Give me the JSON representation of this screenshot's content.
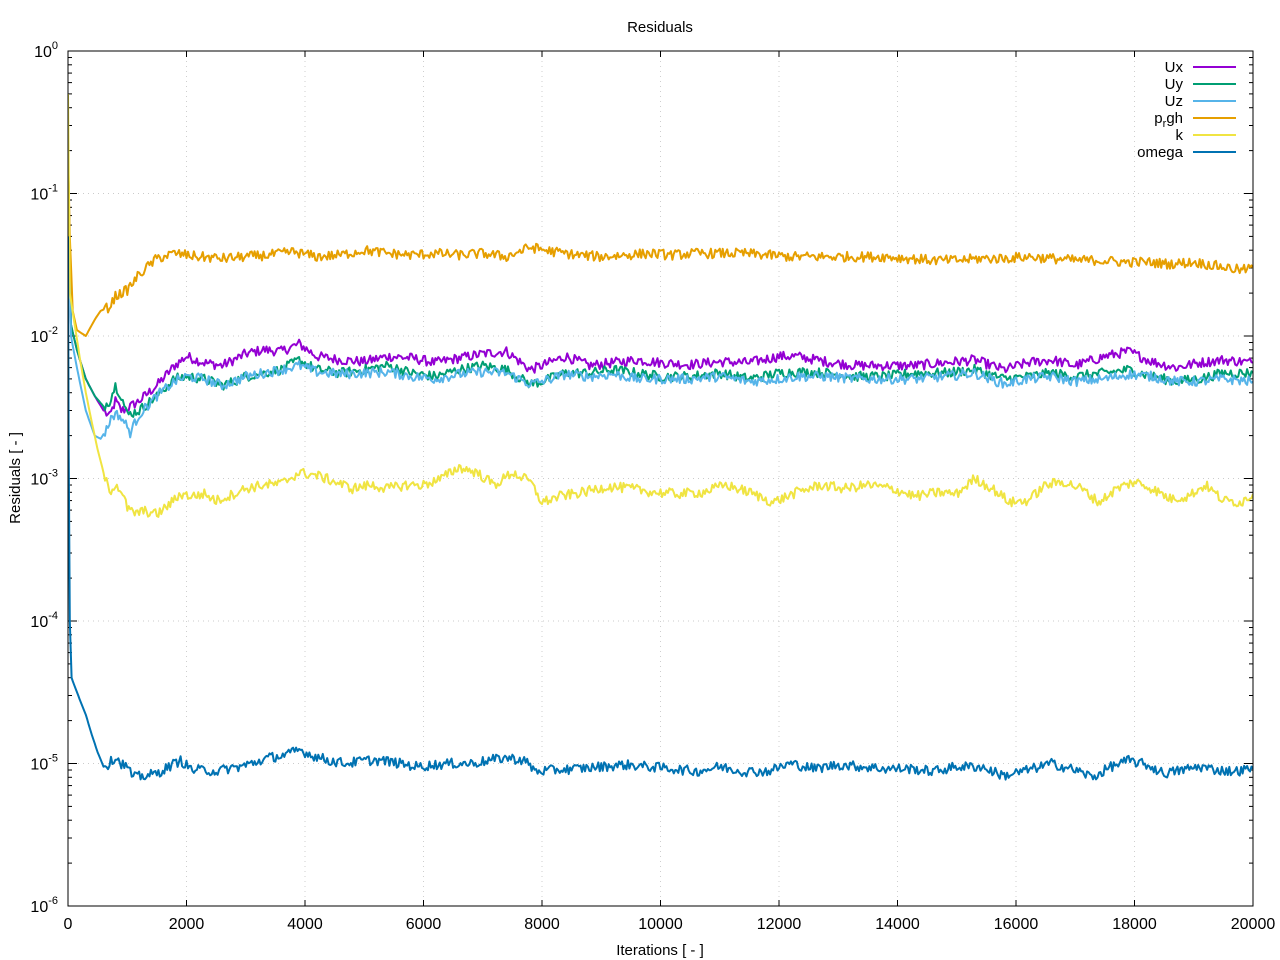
{
  "chart_data": {
    "type": "line",
    "title": "Residuals",
    "xlabel": "Iterations [ - ]",
    "ylabel": "Residuals [ - ]",
    "xlim": [
      0,
      20000
    ],
    "ylim": [
      1e-06,
      1
    ],
    "yscale": "log",
    "grid": true,
    "legend_position": "top-right",
    "x_ticks": [
      "0",
      "2000",
      "4000",
      "6000",
      "8000",
      "10000",
      "12000",
      "14000",
      "16000",
      "18000",
      "20000"
    ],
    "y_ticks": [
      {
        "base": "10",
        "exp": "0"
      },
      {
        "base": "10",
        "exp": "-1"
      },
      {
        "base": "10",
        "exp": "-2"
      },
      {
        "base": "10",
        "exp": "-3"
      },
      {
        "base": "10",
        "exp": "-4"
      },
      {
        "base": "10",
        "exp": "-5"
      },
      {
        "base": "10",
        "exp": "-6"
      }
    ],
    "series": [
      {
        "name": "Ux",
        "color": "#9400d3",
        "x": [
          0,
          50,
          150,
          300,
          450,
          600,
          700,
          800,
          900,
          1000,
          1200,
          1500,
          1800,
          2000,
          2300,
          2600,
          2800,
          3000,
          3300,
          3600,
          3900,
          4200,
          4600,
          5000,
          5400,
          5800,
          6200,
          6600,
          7000,
          7400,
          7800,
          8000,
          8400,
          8800,
          9200,
          9600,
          10000,
          10500,
          11000,
          11500,
          12000,
          12300,
          12800,
          13300,
          13800,
          14300,
          14800,
          15300,
          15800,
          16200,
          16600,
          17000,
          17500,
          17900,
          18300,
          18700,
          19100,
          19500,
          20000
        ],
        "y": [
          0.2,
          0.012,
          0.008,
          0.005,
          0.0038,
          0.003,
          0.0027,
          0.0035,
          0.003,
          0.0031,
          0.0035,
          0.0045,
          0.0062,
          0.0072,
          0.0065,
          0.0062,
          0.0068,
          0.0075,
          0.008,
          0.0078,
          0.0088,
          0.0072,
          0.0068,
          0.0066,
          0.0072,
          0.007,
          0.0065,
          0.007,
          0.0075,
          0.0078,
          0.0058,
          0.0062,
          0.0072,
          0.0062,
          0.0065,
          0.0068,
          0.0065,
          0.0063,
          0.0066,
          0.0065,
          0.0072,
          0.0072,
          0.0066,
          0.0062,
          0.0062,
          0.0062,
          0.0065,
          0.0068,
          0.0058,
          0.0065,
          0.0068,
          0.0062,
          0.0072,
          0.0078,
          0.0066,
          0.006,
          0.0065,
          0.0068,
          0.0065
        ]
      },
      {
        "name": "Uy",
        "color": "#009e73",
        "x": [
          0,
          50,
          150,
          300,
          450,
          600,
          700,
          800,
          900,
          1000,
          1200,
          1500,
          1800,
          2000,
          2300,
          2600,
          2800,
          3000,
          3300,
          3600,
          3900,
          4200,
          4600,
          5000,
          5400,
          5800,
          6200,
          6600,
          7000,
          7400,
          7800,
          8000,
          8400,
          8800,
          9200,
          9600,
          10000,
          10500,
          11000,
          11500,
          12000,
          12300,
          12800,
          13300,
          13800,
          14300,
          14800,
          15300,
          15800,
          16200,
          16600,
          17000,
          17500,
          17900,
          18300,
          18700,
          19100,
          19500,
          20000
        ],
        "y": [
          0.2,
          0.012,
          0.008,
          0.005,
          0.0038,
          0.0032,
          0.0035,
          0.0045,
          0.0038,
          0.0028,
          0.003,
          0.0038,
          0.005,
          0.0052,
          0.005,
          0.0045,
          0.0048,
          0.0052,
          0.0055,
          0.0058,
          0.0068,
          0.0058,
          0.0055,
          0.0058,
          0.0062,
          0.0055,
          0.0052,
          0.0058,
          0.0062,
          0.0058,
          0.0046,
          0.0048,
          0.0055,
          0.0055,
          0.0058,
          0.0055,
          0.0052,
          0.0052,
          0.0055,
          0.005,
          0.0055,
          0.0056,
          0.0055,
          0.0052,
          0.0052,
          0.0055,
          0.0055,
          0.0058,
          0.005,
          0.0052,
          0.0055,
          0.0052,
          0.0055,
          0.0058,
          0.0052,
          0.0048,
          0.005,
          0.0055,
          0.0055
        ]
      },
      {
        "name": "Uz",
        "color": "#56b4e9",
        "x": [
          0,
          50,
          150,
          300,
          450,
          550,
          650,
          750,
          850,
          950,
          1050,
          1200,
          1500,
          1800,
          2000,
          2300,
          2600,
          2800,
          3000,
          3300,
          3600,
          3900,
          4200,
          4600,
          5000,
          5400,
          5800,
          6200,
          6600,
          7000,
          7400,
          7800,
          8000,
          8400,
          8800,
          9200,
          9600,
          10000,
          10500,
          11000,
          11500,
          12000,
          12300,
          12800,
          13300,
          13800,
          14300,
          14800,
          15300,
          15800,
          16200,
          16600,
          17000,
          17500,
          17900,
          18300,
          18700,
          19100,
          19500,
          20000
        ],
        "y": [
          0.2,
          0.01,
          0.006,
          0.003,
          0.002,
          0.0019,
          0.0022,
          0.0028,
          0.0028,
          0.0025,
          0.0021,
          0.0028,
          0.0038,
          0.0048,
          0.0052,
          0.005,
          0.0045,
          0.0048,
          0.0052,
          0.0055,
          0.0058,
          0.0062,
          0.0056,
          0.0054,
          0.0055,
          0.0056,
          0.0052,
          0.005,
          0.0054,
          0.0056,
          0.0055,
          0.0046,
          0.0048,
          0.0054,
          0.0052,
          0.0054,
          0.005,
          0.005,
          0.005,
          0.0052,
          0.0048,
          0.005,
          0.0052,
          0.0052,
          0.005,
          0.005,
          0.005,
          0.0052,
          0.0055,
          0.0046,
          0.005,
          0.0052,
          0.0048,
          0.005,
          0.0054,
          0.0052,
          0.0048,
          0.0048,
          0.005,
          0.0048
        ]
      },
      {
        "name": "p_rgh",
        "color": "#e69f00",
        "x": [
          0,
          30,
          80,
          150,
          300,
          450,
          550,
          700,
          800,
          1000,
          1200,
          1500,
          1800,
          2200,
          2600,
          3000,
          3400,
          3800,
          4200,
          4600,
          5000,
          5400,
          5800,
          6200,
          6600,
          7000,
          7400,
          7800,
          8200,
          8600,
          9000,
          9400,
          9800,
          10200,
          10600,
          11000,
          11400,
          11800,
          12200,
          12600,
          13000,
          13400,
          13800,
          14200,
          14600,
          15000,
          15400,
          15800,
          16200,
          16600,
          17000,
          17400,
          17800,
          18200,
          18600,
          19000,
          19400,
          19800,
          20000
        ],
        "y": [
          0.2,
          0.05,
          0.015,
          0.011,
          0.01,
          0.013,
          0.015,
          0.016,
          0.019,
          0.021,
          0.027,
          0.035,
          0.038,
          0.036,
          0.035,
          0.036,
          0.037,
          0.039,
          0.036,
          0.037,
          0.04,
          0.038,
          0.037,
          0.038,
          0.037,
          0.038,
          0.036,
          0.042,
          0.039,
          0.037,
          0.036,
          0.037,
          0.038,
          0.037,
          0.038,
          0.038,
          0.038,
          0.037,
          0.036,
          0.036,
          0.036,
          0.036,
          0.036,
          0.035,
          0.034,
          0.034,
          0.035,
          0.035,
          0.036,
          0.035,
          0.034,
          0.034,
          0.033,
          0.033,
          0.032,
          0.033,
          0.031,
          0.029,
          0.03
        ]
      },
      {
        "name": "k",
        "color": "#f0e442",
        "x": [
          0,
          30,
          100,
          200,
          300,
          400,
          500,
          600,
          700,
          800,
          900,
          1000,
          1100,
          1300,
          1500,
          1700,
          1900,
          2100,
          2300,
          2500,
          2700,
          3000,
          3300,
          3600,
          3900,
          4200,
          4500,
          4800,
          5100,
          5400,
          5700,
          6000,
          6300,
          6600,
          6900,
          7200,
          7500,
          7800,
          8000,
          8300,
          8700,
          9100,
          9500,
          9900,
          10300,
          10700,
          11100,
          11500,
          11900,
          12300,
          12700,
          13100,
          13500,
          13900,
          14300,
          14700,
          15000,
          15300,
          15600,
          15900,
          16200,
          16500,
          16800,
          17100,
          17400,
          17700,
          18000,
          18300,
          18600,
          18900,
          19200,
          19500,
          19800,
          20000
        ],
        "y": [
          0.5,
          0.02,
          0.013,
          0.007,
          0.004,
          0.0025,
          0.0016,
          0.0011,
          0.0008,
          0.00092,
          0.00082,
          0.00062,
          0.00057,
          0.00059,
          0.00056,
          0.00065,
          0.00078,
          0.00075,
          0.00078,
          0.0007,
          0.00075,
          0.00085,
          0.0009,
          0.00092,
          0.0011,
          0.00105,
          0.00095,
          0.00085,
          0.0009,
          0.00085,
          0.0009,
          0.0009,
          0.001,
          0.0012,
          0.0011,
          0.0009,
          0.0011,
          0.00095,
          0.00068,
          0.00075,
          0.0008,
          0.00088,
          0.00085,
          0.0008,
          0.00078,
          0.0008,
          0.0009,
          0.0008,
          0.00068,
          0.0008,
          0.0009,
          0.00085,
          0.0009,
          0.00085,
          0.00075,
          0.0008,
          0.00078,
          0.001,
          0.00085,
          0.00068,
          0.0007,
          0.0009,
          0.00095,
          0.00085,
          0.00068,
          0.00085,
          0.00095,
          0.00085,
          0.00072,
          0.00075,
          0.0009,
          0.0007,
          0.00068,
          0.00078
        ]
      },
      {
        "name": "omega",
        "color": "#0072b2",
        "x": [
          0,
          10,
          30,
          60,
          100,
          200,
          300,
          400,
          500,
          600,
          700,
          800,
          900,
          1000,
          1100,
          1300,
          1500,
          1700,
          1900,
          2100,
          2300,
          2500,
          2700,
          2900,
          3100,
          3400,
          3700,
          3900,
          4100,
          4400,
          4700,
          5000,
          5300,
          5600,
          5900,
          6200,
          6500,
          6800,
          7100,
          7400,
          7700,
          7900,
          8200,
          8600,
          9000,
          9400,
          9800,
          10200,
          10600,
          11000,
          11400,
          11800,
          12200,
          12600,
          13000,
          13400,
          13800,
          14200,
          14600,
          15000,
          15400,
          15800,
          16200,
          16600,
          17000,
          17300,
          17600,
          17900,
          18200,
          18500,
          18800,
          19100,
          19400,
          19700,
          20000
        ],
        "y": [
          0.05,
          0.002,
          0.0001,
          4e-05,
          3.6e-05,
          2.8e-05,
          2.2e-05,
          1.6e-05,
          1.2e-05,
          9.5e-06,
          1e-05,
          1.12e-05,
          1e-05,
          9.5e-06,
          8e-06,
          8.2e-06,
          8.5e-06,
          9.5e-06,
          1.05e-05,
          9e-06,
          9e-06,
          8.8e-06,
          9.2e-06,
          9.5e-06,
          1e-05,
          1.1e-05,
          1.15e-05,
          1.25e-05,
          1.15e-05,
          1.05e-05,
          1e-05,
          1.05e-05,
          1.05e-05,
          1e-05,
          9.5e-06,
          9.8e-06,
          1e-05,
          1e-05,
          1.05e-05,
          1.1e-05,
          1.05e-05,
          8.8e-06,
          9e-06,
          9.2e-06,
          9.5e-06,
          9.8e-06,
          9.5e-06,
          9.2e-06,
          8.8e-06,
          9.5e-06,
          8.8e-06,
          8.8e-06,
          1e-05,
          9.2e-06,
          9.8e-06,
          9.5e-06,
          9.2e-06,
          9.2e-06,
          8.8e-06,
          9.5e-06,
          9.5e-06,
          8.2e-06,
          9e-06,
          1e-05,
          9e-06,
          8e-06,
          9.5e-06,
          1.05e-05,
          9.8e-06,
          8.5e-06,
          9e-06,
          9.5e-06,
          9e-06,
          8.8e-06,
          9.2e-06
        ]
      }
    ]
  }
}
